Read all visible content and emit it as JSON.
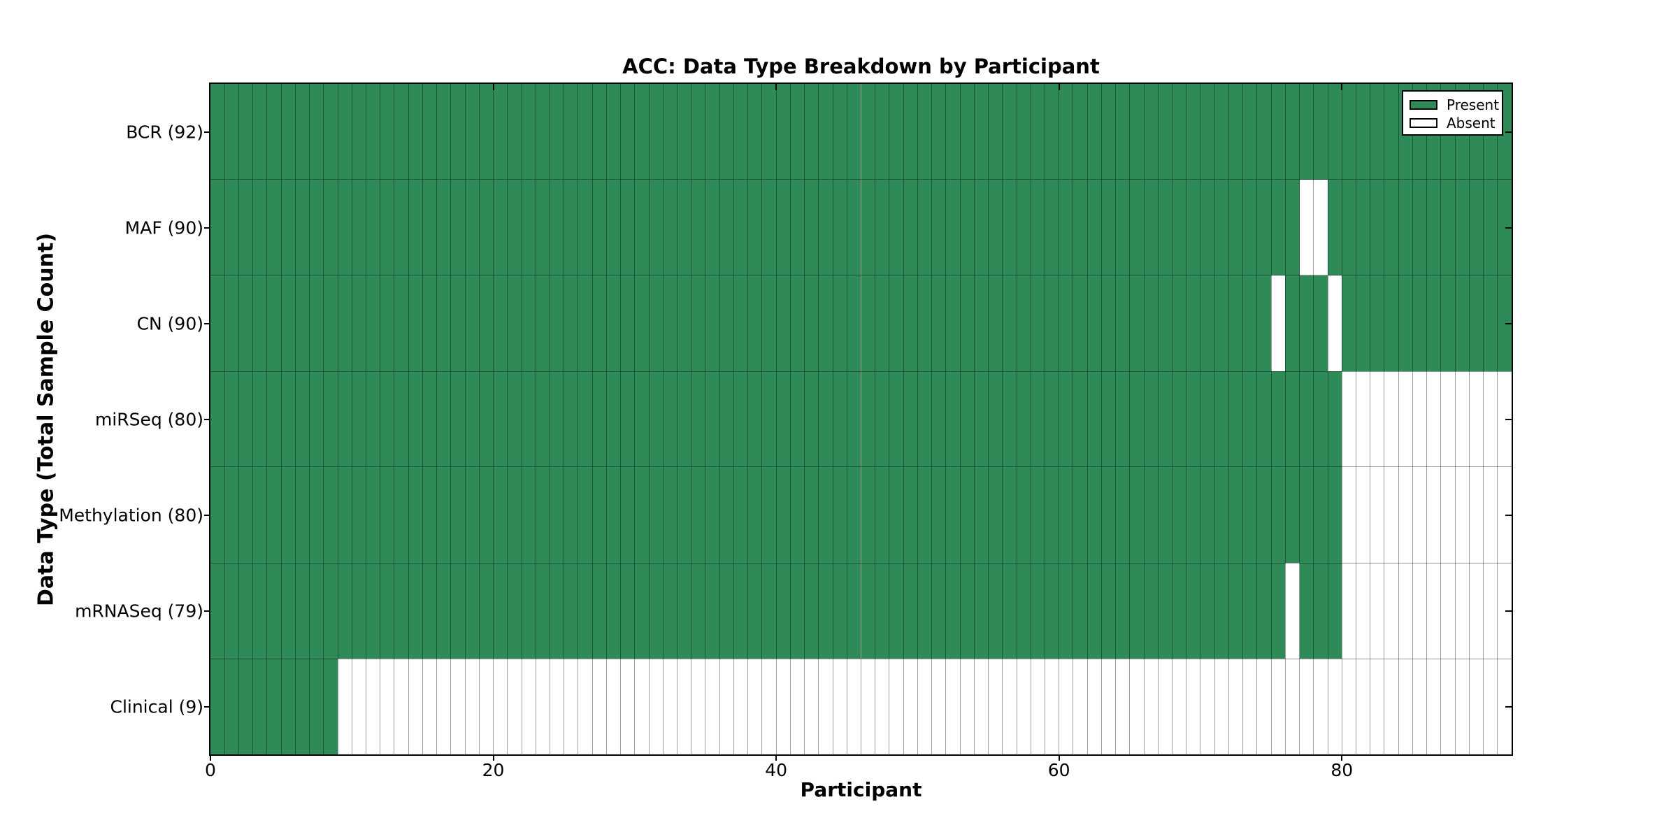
{
  "chart_data": {
    "type": "heatmap",
    "title": "ACC: Data Type Breakdown by Participant",
    "xlabel": "Participant",
    "ylabel": "Data Type (Total Sample Count)",
    "n_participants": 92,
    "xlim": [
      0,
      92
    ],
    "x_ticks": [
      0,
      20,
      40,
      60,
      80
    ],
    "grid": "off",
    "legend_position": "upper right",
    "legend": [
      {
        "label": "Present",
        "color": "#2e8b57"
      },
      {
        "label": "Absent",
        "color": "#ffffff"
      }
    ],
    "rows": [
      {
        "label": "BCR",
        "total": 92,
        "display": "BCR (92)",
        "absent_ranges": []
      },
      {
        "label": "MAF",
        "total": 90,
        "display": "MAF (90)",
        "absent_ranges": [
          [
            77,
            78
          ]
        ]
      },
      {
        "label": "CN",
        "total": 90,
        "display": "CN (90)",
        "absent_ranges": [
          [
            75,
            75
          ],
          [
            79,
            79
          ]
        ]
      },
      {
        "label": "miRSeq",
        "total": 80,
        "display": "miRSeq (80)",
        "absent_ranges": [
          [
            80,
            91
          ]
        ]
      },
      {
        "label": "Methylation",
        "total": 80,
        "display": "Methylation (80)",
        "absent_ranges": [
          [
            80,
            91
          ]
        ]
      },
      {
        "label": "mRNASeq",
        "total": 79,
        "display": "mRNASeq (79)",
        "absent_ranges": [
          [
            76,
            76
          ],
          [
            80,
            91
          ]
        ]
      },
      {
        "label": "Clinical",
        "total": 9,
        "display": "Clinical (9)",
        "absent_ranges": [
          [
            9,
            91
          ]
        ]
      }
    ],
    "colors": {
      "present": "#2e8b57",
      "absent": "#ffffff",
      "gridline": "rgba(0,0,0,0.38)",
      "frame": "#000000",
      "text": "#000000"
    }
  }
}
